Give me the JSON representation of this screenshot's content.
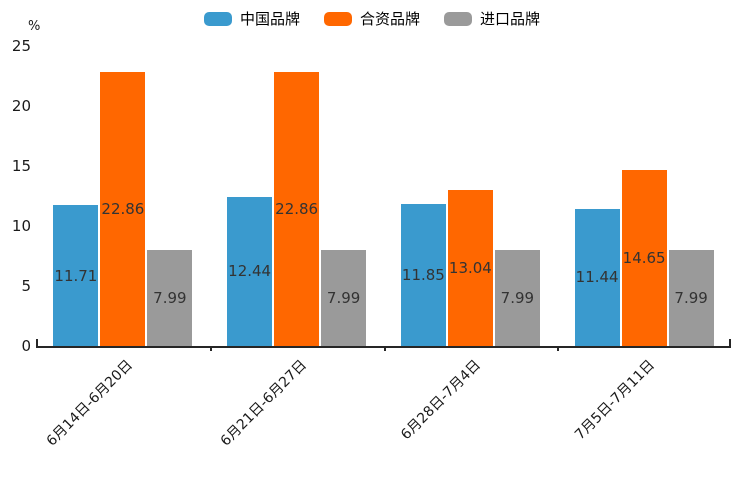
{
  "chart_data": {
    "type": "bar",
    "title": "",
    "xlabel": "",
    "ylabel": "%",
    "ylim": [
      0,
      25
    ],
    "yticks": [
      0,
      5,
      10,
      15,
      20,
      25
    ],
    "grid": false,
    "legend_position": "top-center",
    "value_labels": "centered-in-bar",
    "categories": [
      "6月14日-6月20日",
      "6月21日-6月27日",
      "6月28日-7月4日",
      "7月5日-7月11日"
    ],
    "series": [
      {
        "name": "中国品牌",
        "color": "#3a9ace",
        "values": [
          11.71,
          12.44,
          11.85,
          11.44
        ]
      },
      {
        "name": "合资品牌",
        "color": "#ff6700",
        "values": [
          22.86,
          22.86,
          13.04,
          14.65
        ]
      },
      {
        "name": "进口品牌",
        "color": "#9a9a9a",
        "values": [
          7.99,
          7.99,
          7.99,
          7.99
        ]
      }
    ],
    "colors": {
      "axis": "#262626",
      "tick_label": "#1a1a1a",
      "value_label": "#333333",
      "background": "#ffffff"
    }
  }
}
